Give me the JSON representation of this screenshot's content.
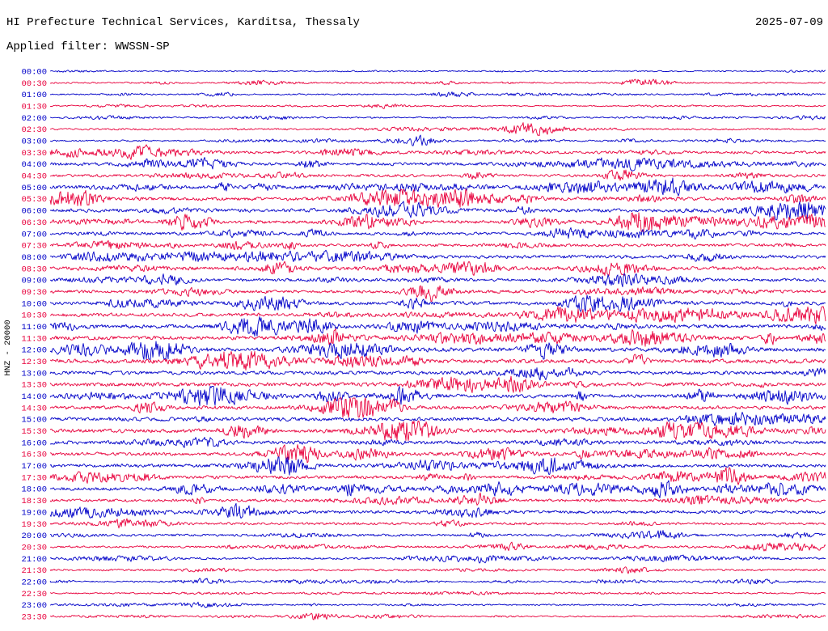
{
  "header": {
    "title": "HI Prefecture Technical Services, Karditsa, Thessaly",
    "date": "2025-07-09",
    "filter_label": "Applied filter: WWSSN-SP"
  },
  "axis": {
    "channel_label": "HNZ - 20000"
  },
  "colors": {
    "trace_blue": "#0000c8",
    "trace_red": "#e8003c",
    "text": "#000000",
    "background": "#ffffff"
  },
  "chart_data": {
    "type": "line",
    "subtype": "helicorder-seismogram",
    "title": "HI Prefecture Technical Services, Karditsa, Thessaly",
    "date": "2025-07-09",
    "filter": "WWSSN-SP",
    "station_channel": "HNZ",
    "scale": 20000,
    "minutes_per_row": 30,
    "xlabel": "",
    "ylabel": "HNZ - 20000",
    "grid": false,
    "legend": "none",
    "row_labels": [
      "00:00",
      "00:30",
      "01:00",
      "01:30",
      "02:00",
      "02:30",
      "03:00",
      "03:30",
      "04:00",
      "04:30",
      "05:00",
      "05:30",
      "06:00",
      "06:30",
      "07:00",
      "07:30",
      "08:00",
      "08:30",
      "09:00",
      "09:30",
      "10:00",
      "10:30",
      "11:00",
      "11:30",
      "12:00",
      "12:30",
      "13:00",
      "13:30",
      "14:00",
      "14:30",
      "15:00",
      "15:30",
      "16:00",
      "16:30",
      "17:00",
      "17:30",
      "18:00",
      "18:30",
      "19:00",
      "19:30",
      "20:00",
      "20:30",
      "21:00",
      "21:30",
      "22:00",
      "22:30",
      "23:00",
      "23:30"
    ],
    "row_colors": [
      "blue",
      "red",
      "blue",
      "red",
      "blue",
      "red",
      "blue",
      "red",
      "blue",
      "red",
      "blue",
      "red",
      "blue",
      "red",
      "blue",
      "red",
      "blue",
      "red",
      "blue",
      "red",
      "blue",
      "red",
      "blue",
      "red",
      "blue",
      "red",
      "blue",
      "red",
      "blue",
      "red",
      "blue",
      "red",
      "blue",
      "red",
      "blue",
      "red",
      "blue",
      "red",
      "blue",
      "red",
      "blue",
      "red",
      "blue",
      "red",
      "blue",
      "red",
      "blue",
      "red"
    ],
    "row_amplitudes": [
      0.55,
      0.6,
      0.6,
      0.6,
      0.65,
      0.7,
      0.7,
      1.1,
      1.3,
      1.1,
      1.4,
      1.5,
      1.5,
      1.4,
      1.2,
      1.2,
      1.4,
      1.5,
      1.3,
      1.3,
      1.5,
      1.5,
      1.6,
      1.6,
      1.7,
      1.7,
      1.5,
      1.6,
      1.5,
      1.5,
      1.6,
      1.6,
      1.5,
      1.4,
      1.4,
      1.3,
      1.3,
      1.2,
      1.3,
      1.0,
      1.0,
      0.9,
      0.9,
      0.8,
      0.7,
      0.6,
      0.65,
      0.6
    ],
    "events": [
      {
        "row_label": "00:30",
        "position": 0.77,
        "strength": 4
      },
      {
        "row_label": "01:00",
        "position": 0.52,
        "strength": 3.5
      },
      {
        "row_label": "01:30",
        "position": 0.43,
        "strength": 3
      },
      {
        "row_label": "02:30",
        "position": 0.62,
        "strength": 7
      },
      {
        "row_label": "03:00",
        "position": 0.47,
        "strength": 4
      },
      {
        "row_label": "04:00",
        "position": 0.2,
        "strength": 4
      },
      {
        "row_label": "04:30",
        "position": 0.74,
        "strength": 3
      },
      {
        "row_label": "05:30",
        "position": 0.04,
        "strength": 3.5
      },
      {
        "row_label": "06:30",
        "position": 0.75,
        "strength": 4
      },
      {
        "row_label": "08:30",
        "position": 0.55,
        "strength": 3
      },
      {
        "row_label": "09:30",
        "position": 0.49,
        "strength": 4
      },
      {
        "row_label": "12:00",
        "position": 0.14,
        "strength": 4
      },
      {
        "row_label": "13:30",
        "position": 0.6,
        "strength": 3.5
      },
      {
        "row_label": "15:30",
        "position": 0.25,
        "strength": 3
      },
      {
        "row_label": "16:30",
        "position": 0.3,
        "strength": 3
      },
      {
        "row_label": "18:00",
        "position": 0.79,
        "strength": 4.5
      },
      {
        "row_label": "19:00",
        "position": 0.24,
        "strength": 3.5
      },
      {
        "row_label": "22:00",
        "position": 0.2,
        "strength": 3
      },
      {
        "row_label": "23:30",
        "position": 0.34,
        "strength": 4
      }
    ]
  }
}
